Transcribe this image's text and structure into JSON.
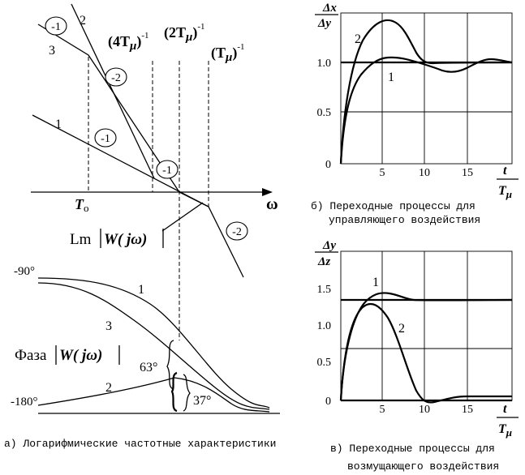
{
  "panel_a": {
    "curve_labels": [
      "1",
      "2",
      "3"
    ],
    "slope_labels": [
      "-1",
      "-2",
      "-1",
      "-1",
      "-2"
    ],
    "freq_labels": {
      "f1_base": "(4T",
      "f1_close": ")",
      "f1_exp": "-1",
      "f2_base": "(2T",
      "f2_close": ")",
      "f2_exp": "-1",
      "f3_base": "(T",
      "f3_close": ")",
      "f3_exp": "-1",
      "mu": "μ"
    },
    "t0_label": "T",
    "t0_sub": "o",
    "omega_label": "ω",
    "lm_prefix": "Lm",
    "transfer": "W( jω)",
    "phase_prefix": "Фаза",
    "phase_top": "-90°",
    "phase_bottom": "-180°",
    "phase_curve_labels": [
      "1",
      "3",
      "2"
    ],
    "margin_63": "63°",
    "margin_37": "37°",
    "caption": "а) Логарифмические частотные характеристики"
  },
  "panel_b": {
    "y_num": "Δx",
    "y_den": "Δy",
    "x_num": "t",
    "x_den": "T",
    "x_den_sub": "μ",
    "yticks": [
      "1.0",
      "0.5",
      "0"
    ],
    "xticks": [
      "5",
      "10",
      "15"
    ],
    "curve_labels": [
      "2",
      "1"
    ],
    "caption_line1": "б) Переходные процессы для",
    "caption_line2": "управляющего воздействия"
  },
  "panel_c": {
    "y_num": "Δy",
    "y_den": "Δz",
    "x_num": "t",
    "x_den": "T",
    "x_den_sub": "μ",
    "yticks": [
      "1.5",
      "1.0",
      "0.5",
      "0"
    ],
    "xticks": [
      "5",
      "10",
      "15"
    ],
    "curve_labels": [
      "1",
      "2"
    ],
    "caption_line1": "в) Переходные процессы для",
    "caption_line2": "возмущающего воздействия"
  }
}
